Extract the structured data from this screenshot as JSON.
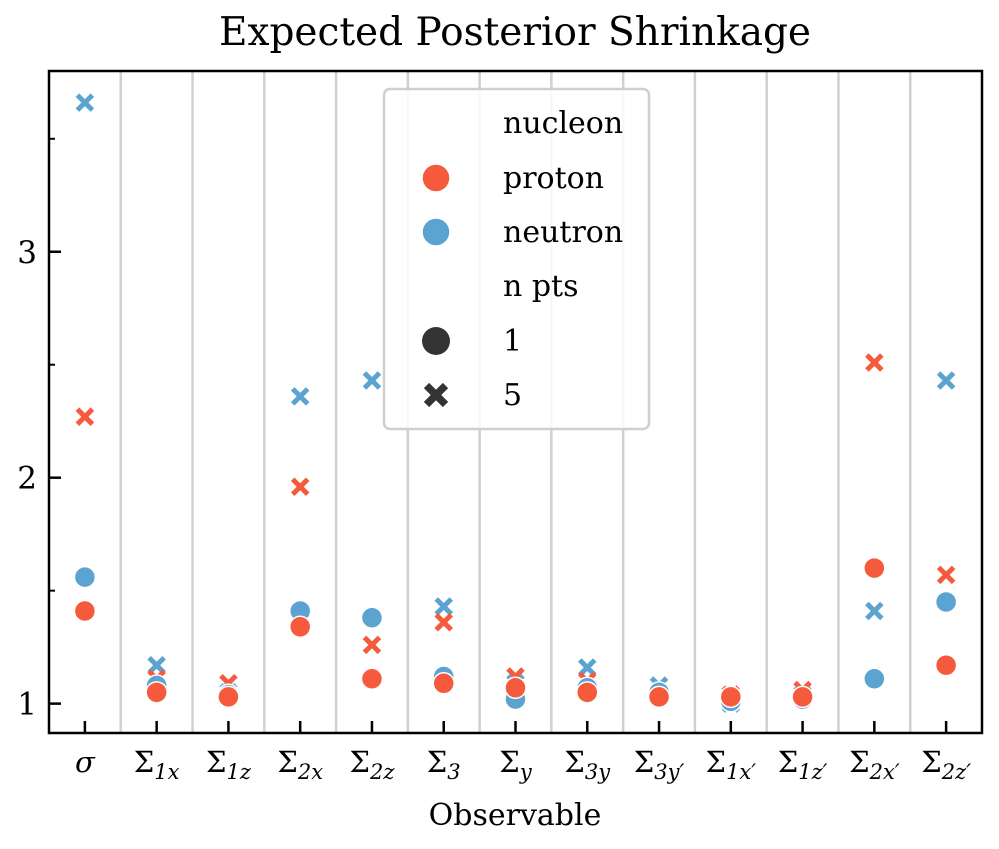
{
  "chart_data": {
    "type": "scatter",
    "title": "Expected Posterior Shrinkage",
    "xlabel": "Observable",
    "ylabel": "",
    "categories": [
      "σ",
      "Σ1x",
      "Σ1z",
      "Σ2x",
      "Σ2z",
      "Σ3",
      "Σy",
      "Σ3y",
      "Σ3y'",
      "Σ1x'",
      "Σ1z'",
      "Σ2x'",
      "Σ2z'"
    ],
    "category_labels": [
      {
        "base": "σ",
        "sub": ""
      },
      {
        "base": "Σ",
        "sub": "1x"
      },
      {
        "base": "Σ",
        "sub": "1z"
      },
      {
        "base": "Σ",
        "sub": "2x"
      },
      {
        "base": "Σ",
        "sub": "2z"
      },
      {
        "base": "Σ",
        "sub": "3"
      },
      {
        "base": "Σ",
        "sub": "y"
      },
      {
        "base": "Σ",
        "sub": "3y"
      },
      {
        "base": "Σ",
        "sub": "3y′"
      },
      {
        "base": "Σ",
        "sub": "1x′"
      },
      {
        "base": "Σ",
        "sub": "1z′"
      },
      {
        "base": "Σ",
        "sub": "2x′"
      },
      {
        "base": "Σ",
        "sub": "2z′"
      }
    ],
    "ylim": [
      0.87,
      3.8
    ],
    "yticks": [
      1,
      2,
      3
    ],
    "ytick_labels": [
      "1",
      "2",
      "3"
    ],
    "minor_yticks": [
      1.5,
      2.5,
      3.5
    ],
    "series": [
      {
        "name": "neutron",
        "npts": "5",
        "color": "#5ba3d0",
        "marker": "x",
        "values": [
          3.66,
          1.17,
          1.05,
          2.36,
          2.43,
          1.43,
          1.09,
          1.16,
          1.08,
          1.0,
          1.04,
          1.41,
          2.43
        ]
      },
      {
        "name": "proton",
        "npts": "5",
        "color": "#f55a3c",
        "marker": "x",
        "values": [
          2.27,
          1.11,
          1.09,
          1.96,
          1.26,
          1.36,
          1.12,
          1.1,
          1.04,
          1.04,
          1.06,
          2.51,
          1.57
        ]
      },
      {
        "name": "neutron",
        "npts": "1",
        "color": "#5ba3d0",
        "marker": "o",
        "values": [
          1.56,
          1.08,
          1.04,
          1.41,
          1.38,
          1.12,
          1.02,
          1.07,
          1.05,
          1.01,
          1.02,
          1.11,
          1.45
        ]
      },
      {
        "name": "proton",
        "npts": "1",
        "color": "#f55a3c",
        "marker": "o",
        "values": [
          1.41,
          1.05,
          1.03,
          1.34,
          1.11,
          1.09,
          1.07,
          1.05,
          1.03,
          1.03,
          1.03,
          1.6,
          1.17
        ]
      }
    ],
    "legend": {
      "position": "upper-center",
      "hue_title": "nucleon",
      "hue_entries": [
        {
          "label": "proton",
          "color": "#f55a3c"
        },
        {
          "label": "neutron",
          "color": "#5ba3d0"
        }
      ],
      "style_title": "n pts",
      "style_entries": [
        {
          "label": "1",
          "marker": "o",
          "color": "#333333"
        },
        {
          "label": "5",
          "marker": "x",
          "color": "#333333"
        }
      ]
    }
  }
}
